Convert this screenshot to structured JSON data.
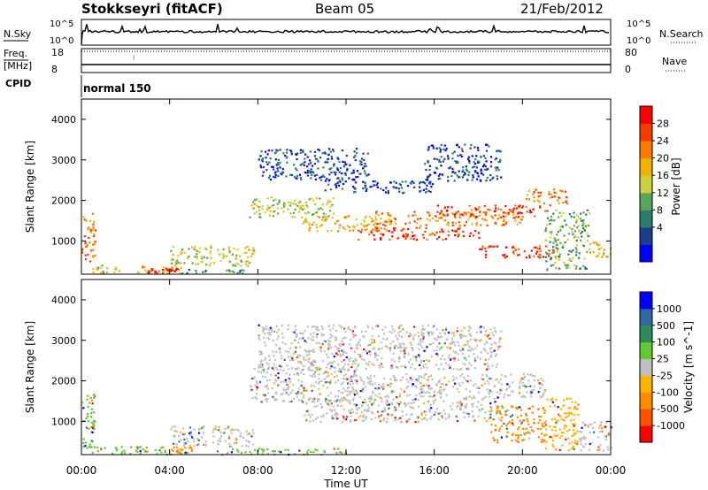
{
  "header": {
    "station": "Stokkseyri (fitACF)",
    "beam": "Beam 05",
    "date": "21/Feb/2012"
  },
  "status_panels": {
    "nsky_label": "N.Sky",
    "nsky_ticks": [
      "10^5",
      "10^0"
    ],
    "nsearch_label": "N.Search",
    "nsearch_ticks": [
      "10^5",
      "10^0"
    ],
    "freq_label": "Freq.",
    "freq_unit": "[MHz]",
    "freq_ticks": [
      "18",
      "8"
    ],
    "nave_label": "Nave",
    "nave_ticks": [
      "80",
      "0"
    ],
    "cpid_label": "CPID",
    "cpid_value": "normal 150"
  },
  "x_axis": {
    "label": "Time UT",
    "tick_labels": [
      "00:00",
      "04:00",
      "08:00",
      "12:00",
      "16:00",
      "20:00",
      "00:00"
    ]
  },
  "power_colorbar": {
    "label": "Power [dB]",
    "ticks": [
      "28",
      "24",
      "20",
      "16",
      "12",
      "8",
      "4"
    ],
    "colors": [
      "#0000ff",
      "#1e3c8c",
      "#2a7d6a",
      "#5aa55a",
      "#c8d23c",
      "#f0b400",
      "#ff7800",
      "#f53c00",
      "#ff0000"
    ]
  },
  "velocity_colorbar": {
    "label": "Velocity [m s^-1]",
    "ticks": [
      "1000",
      "500",
      "100",
      "25",
      "-25",
      "-100",
      "-500",
      "-1000"
    ],
    "colors": [
      "#0000ff",
      "#2e6aa0",
      "#2e8b57",
      "#63c832",
      "#c0c0c0",
      "#ffb400",
      "#ff8c00",
      "#ff5000",
      "#ff0000"
    ]
  },
  "chart_data": [
    {
      "type": "heatmap",
      "name": "power",
      "ylabel": "Slant Range [km]",
      "ytick_labels": [
        "1000",
        "2000",
        "3000",
        "4000"
      ],
      "xlim_hours": [
        0,
        24
      ],
      "ylim_km": [
        180,
        4500
      ],
      "echo_bands": [
        {
          "t0": 0.0,
          "t1": 0.6,
          "r0": 400,
          "r1": 1700,
          "level": 6
        },
        {
          "t0": 0.3,
          "t1": 2.0,
          "r0": 220,
          "r1": 420,
          "level": 4
        },
        {
          "t0": 2.0,
          "t1": 4.5,
          "r0": 220,
          "r1": 400,
          "level": 5
        },
        {
          "t0": 3.0,
          "t1": 4.3,
          "r0": 220,
          "r1": 360,
          "level": 8
        },
        {
          "t0": 4.0,
          "t1": 7.8,
          "r0": 400,
          "r1": 900,
          "level": 4
        },
        {
          "t0": 4.5,
          "t1": 7.5,
          "r0": 220,
          "r1": 320,
          "level": 2
        },
        {
          "t0": 7.6,
          "t1": 11.5,
          "r0": 1600,
          "r1": 2100,
          "level": 4
        },
        {
          "t0": 10.0,
          "t1": 13.5,
          "r0": 1250,
          "r1": 1650,
          "level": 5
        },
        {
          "t0": 12.5,
          "t1": 18.0,
          "r0": 1050,
          "r1": 1350,
          "level": 7
        },
        {
          "t0": 13.0,
          "t1": 20.0,
          "r0": 1400,
          "r1": 1750,
          "level": 6
        },
        {
          "t0": 16.0,
          "t1": 21.0,
          "r0": 1600,
          "r1": 1900,
          "level": 7
        },
        {
          "t0": 18.0,
          "t1": 21.5,
          "r0": 600,
          "r1": 900,
          "level": 7
        },
        {
          "t0": 20.0,
          "t1": 22.0,
          "r0": 1900,
          "r1": 2300,
          "level": 6
        },
        {
          "t0": 11.0,
          "t1": 16.0,
          "r0": 2200,
          "r1": 2500,
          "level": 1
        },
        {
          "t0": 8.0,
          "t1": 13.0,
          "r0": 2500,
          "r1": 3300,
          "level": 1
        },
        {
          "t0": 15.5,
          "t1": 19.0,
          "r0": 2500,
          "r1": 3400,
          "level": 1
        },
        {
          "t0": 21.0,
          "t1": 23.0,
          "r0": 300,
          "r1": 1800,
          "level": 3
        },
        {
          "t0": 23.0,
          "t1": 24.0,
          "r0": 600,
          "r1": 1000,
          "level": 5
        }
      ]
    },
    {
      "type": "heatmap",
      "name": "velocity",
      "ylabel": "Slant Range [km]",
      "ytick_labels": [
        "1000",
        "2000",
        "3000",
        "4000"
      ],
      "xlim_hours": [
        0,
        24
      ],
      "ylim_km": [
        180,
        4500
      ],
      "echo_bands": [
        {
          "t0": 0.0,
          "t1": 0.6,
          "r0": 300,
          "r1": 1700,
          "level": 3
        },
        {
          "t0": 0.3,
          "t1": 4.5,
          "r0": 200,
          "r1": 400,
          "level": 3
        },
        {
          "t0": 4.0,
          "t1": 7.8,
          "r0": 400,
          "r1": 900,
          "level": 4
        },
        {
          "t0": 4.0,
          "t1": 5.0,
          "r0": 220,
          "r1": 450,
          "level": 6
        },
        {
          "t0": 7.6,
          "t1": 12.5,
          "r0": 1500,
          "r1": 2400,
          "level": 4
        },
        {
          "t0": 10.0,
          "t1": 19.0,
          "r0": 1000,
          "r1": 1600,
          "level": 4
        },
        {
          "t0": 12.0,
          "t1": 21.0,
          "r0": 1600,
          "r1": 2200,
          "level": 4
        },
        {
          "t0": 8.0,
          "t1": 19.0,
          "r0": 2300,
          "r1": 3400,
          "level": 4
        },
        {
          "t0": 18.5,
          "t1": 21.0,
          "r0": 500,
          "r1": 1400,
          "level": 6
        },
        {
          "t0": 21.0,
          "t1": 22.5,
          "r0": 300,
          "r1": 1600,
          "level": 5
        },
        {
          "t0": 22.5,
          "t1": 24.0,
          "r0": 300,
          "r1": 1000,
          "level": 4
        },
        {
          "t0": 6.0,
          "t1": 12.0,
          "r0": 200,
          "r1": 350,
          "level": 3
        }
      ]
    }
  ]
}
